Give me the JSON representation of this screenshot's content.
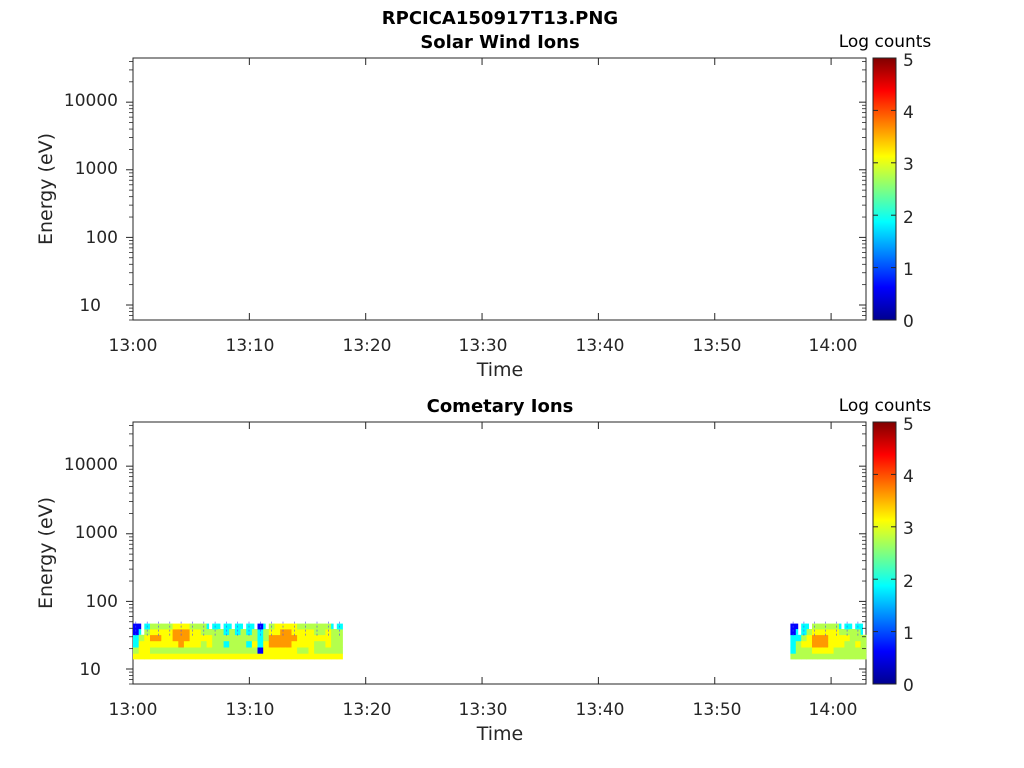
{
  "figure_title": "RPCICA150917T13.PNG",
  "chart_data": [
    {
      "type": "heatmap",
      "title": "Solar Wind Ions",
      "xlabel": "Time",
      "ylabel": "Energy (eV)",
      "x_ticks": [
        "13:00",
        "13:10",
        "13:20",
        "13:30",
        "13:40",
        "13:50",
        "14:00"
      ],
      "x_range_minutes": [
        0,
        63
      ],
      "y_scale": "log",
      "y_ticks": [
        "10",
        "100",
        "1000",
        "10000"
      ],
      "y_range_eV": [
        6,
        45000
      ],
      "colorbar": {
        "label": "Log counts",
        "ticks": [
          "0",
          "1",
          "2",
          "3",
          "4",
          "5"
        ],
        "range": [
          0,
          5
        ],
        "colormap": "jet"
      },
      "blocks": []
    },
    {
      "type": "heatmap",
      "title": "Cometary Ions",
      "xlabel": "Time",
      "ylabel": "Energy (eV)",
      "x_ticks": [
        "13:00",
        "13:10",
        "13:20",
        "13:30",
        "13:40",
        "13:50",
        "14:00"
      ],
      "x_range_minutes": [
        0,
        63
      ],
      "y_scale": "log",
      "y_ticks": [
        "10",
        "100",
        "1000",
        "10000"
      ],
      "y_range_eV": [
        6,
        45000
      ],
      "colorbar": {
        "label": "Log counts",
        "ticks": [
          "0",
          "1",
          "2",
          "3",
          "4",
          "5"
        ],
        "range": [
          0,
          5
        ],
        "colormap": "jet"
      },
      "energy_bins_eV": [
        14,
        17,
        21,
        26,
        32,
        39,
        47
      ],
      "blocks": [
        {
          "start_min": 0.0,
          "end_min": 18.0,
          "sparse_above_eV": 32,
          "columns": [
            [
              3,
              2,
              1,
              1,
              0,
              0
            ],
            [
              3,
              3,
              3,
              2,
              1,
              0
            ],
            [
              3,
              3,
              3,
              3,
              2,
              1
            ],
            [
              3,
              2,
              3,
              4,
              3,
              2
            ],
            [
              3,
              2,
              3,
              4,
              3,
              2
            ],
            [
              3,
              2,
              3,
              3,
              3,
              2
            ],
            [
              3,
              2,
              3,
              3,
              3,
              2
            ],
            [
              3,
              2,
              3,
              4,
              4,
              3
            ],
            [
              3,
              2,
              4,
              4,
              4,
              3
            ],
            [
              3,
              2,
              3,
              4,
              4,
              3
            ],
            [
              3,
              2,
              3,
              3,
              3,
              2
            ],
            [
              3,
              2,
              3,
              3,
              3,
              2
            ],
            [
              3,
              2,
              2,
              3,
              2,
              2
            ],
            [
              3,
              2,
              3,
              3,
              2,
              1
            ],
            [
              3,
              2,
              2,
              2,
              2,
              1
            ],
            [
              3,
              2,
              2,
              2,
              2,
              1
            ],
            [
              3,
              2,
              1,
              2,
              1,
              1
            ],
            [
              3,
              2,
              2,
              2,
              2,
              1
            ],
            [
              3,
              2,
              2,
              2,
              1,
              1
            ],
            [
              3,
              2,
              2,
              2,
              2,
              1
            ],
            [
              3,
              2,
              1,
              2,
              1,
              1
            ],
            [
              3,
              2,
              3,
              2,
              2,
              1
            ],
            [
              3,
              0,
              1,
              1,
              1,
              0
            ],
            [
              3,
              3,
              3,
              2,
              2,
              1
            ],
            [
              3,
              3,
              4,
              4,
              3,
              2
            ],
            [
              3,
              3,
              4,
              4,
              3,
              3
            ],
            [
              3,
              3,
              4,
              4,
              4,
              3
            ],
            [
              3,
              3,
              4,
              4,
              4,
              3
            ],
            [
              3,
              3,
              3,
              4,
              3,
              3
            ],
            [
              3,
              2,
              3,
              3,
              3,
              2
            ],
            [
              3,
              2,
              3,
              3,
              3,
              2
            ],
            [
              3,
              3,
              3,
              3,
              3,
              2
            ],
            [
              3,
              2,
              2,
              3,
              2,
              2
            ],
            [
              3,
              2,
              2,
              3,
              2,
              2
            ],
            [
              3,
              2,
              3,
              3,
              3,
              2
            ],
            [
              3,
              2,
              2,
              2,
              2,
              1
            ],
            [
              3,
              2,
              2,
              2,
              2,
              1
            ]
          ]
        },
        {
          "start_min": 56.5,
          "end_min": 63.0,
          "sparse_above_eV": 32,
          "columns": [
            [
              2,
              1,
              1,
              1,
              0,
              0
            ],
            [
              2,
              2,
              2,
              1,
              1,
              0
            ],
            [
              2,
              2,
              3,
              2,
              1,
              1
            ],
            [
              2,
              2,
              3,
              3,
              2,
              1
            ],
            [
              2,
              3,
              4,
              4,
              3,
              2
            ],
            [
              2,
              3,
              4,
              4,
              3,
              2
            ],
            [
              2,
              3,
              4,
              4,
              3,
              2
            ],
            [
              2,
              3,
              3,
              3,
              3,
              2
            ],
            [
              2,
              2,
              3,
              3,
              3,
              2
            ],
            [
              2,
              2,
              3,
              3,
              2,
              1
            ],
            [
              2,
              2,
              2,
              3,
              2,
              1
            ],
            [
              2,
              2,
              2,
              2,
              2,
              1
            ],
            [
              2,
              2,
              3,
              2,
              2,
              1
            ],
            [
              2,
              2,
              2,
              2,
              1,
              1
            ]
          ]
        }
      ]
    }
  ]
}
